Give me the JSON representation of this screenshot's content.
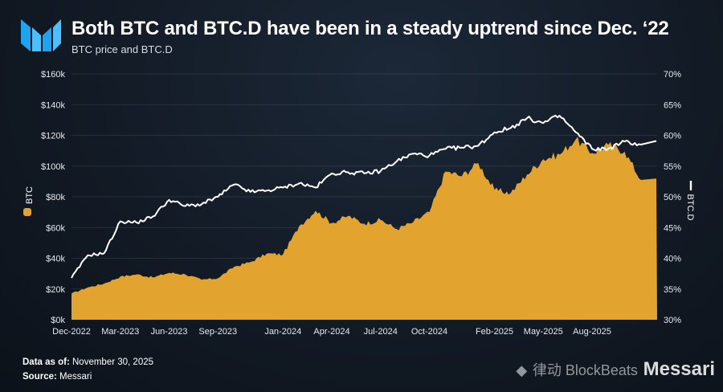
{
  "header": {
    "title": "Both BTC and BTC.D have been in a steady uptrend since Dec. ‘22",
    "subtitle": "BTC price and BTC.D"
  },
  "footer": {
    "data_as_of_label": "Data as of:",
    "data_as_of_value": "November 30, 2025",
    "source_label": "Source:",
    "source_value": "Messari"
  },
  "watermark": "律动 BlockBeats",
  "watermark_brand": "Messari",
  "chart_data": {
    "type": "area",
    "title": "Both BTC and BTC.D have been in a steady uptrend since Dec. ‘22",
    "subtitle": "BTC price and BTC.D",
    "x_tick_labels": [
      "Dec-2022",
      "Mar-2023",
      "Jun-2023",
      "Sep-2023",
      "Jan-2024",
      "Apr-2024",
      "Jul-2024",
      "Oct-2024",
      "Feb-2025",
      "May-2025",
      "Aug-2025"
    ],
    "left_axis": {
      "label": "BTC",
      "range": [
        0,
        160000
      ],
      "tick_labels": [
        "$0k",
        "$20k",
        "$40k",
        "$60k",
        "$80k",
        "$100k",
        "$120k",
        "$140k",
        "$160k"
      ]
    },
    "right_axis": {
      "label": "BTC.D",
      "range": [
        30,
        70
      ],
      "tick_labels": [
        "30%",
        "35%",
        "40%",
        "45%",
        "50%",
        "55%",
        "60%",
        "65%",
        "70%"
      ]
    },
    "series": [
      {
        "name": "BTC",
        "kind": "area",
        "axis": "left",
        "color": "#e2a32f",
        "points": [
          [
            "2022-12",
            17000
          ],
          [
            "2023-01",
            21000
          ],
          [
            "2023-02",
            23500
          ],
          [
            "2023-03",
            28000
          ],
          [
            "2023-04",
            29500
          ],
          [
            "2023-05",
            27500
          ],
          [
            "2023-06",
            30500
          ],
          [
            "2023-07",
            29500
          ],
          [
            "2023-08",
            26000
          ],
          [
            "2023-09",
            27000
          ],
          [
            "2023-10",
            34500
          ],
          [
            "2023-11",
            37500
          ],
          [
            "2023-12",
            43000
          ],
          [
            "2024-01",
            42500
          ],
          [
            "2024-02",
            61000
          ],
          [
            "2024-03",
            71000
          ],
          [
            "2024-04",
            63000
          ],
          [
            "2024-05",
            67500
          ],
          [
            "2024-06",
            62500
          ],
          [
            "2024-07",
            65000
          ],
          [
            "2024-08",
            59000
          ],
          [
            "2024-09",
            63500
          ],
          [
            "2024-10",
            70000
          ],
          [
            "2024-11",
            96500
          ],
          [
            "2024-12",
            93500
          ],
          [
            "2025-01",
            102000
          ],
          [
            "2025-02",
            84500
          ],
          [
            "2025-03",
            82500
          ],
          [
            "2025-04",
            94500
          ],
          [
            "2025-05",
            104500
          ],
          [
            "2025-06",
            107500
          ],
          [
            "2025-07",
            117500
          ],
          [
            "2025-08",
            108500
          ],
          [
            "2025-09",
            114000
          ],
          [
            "2025-10",
            109500
          ],
          [
            "2025-11",
            91000
          ]
        ]
      },
      {
        "name": "BTC.D",
        "kind": "line",
        "axis": "right",
        "color": "#ffffff",
        "points": [
          [
            "2022-12",
            36.8
          ],
          [
            "2023-01",
            40.5
          ],
          [
            "2023-02",
            40.8
          ],
          [
            "2023-03",
            46.0
          ],
          [
            "2023-04",
            45.8
          ],
          [
            "2023-05",
            46.8
          ],
          [
            "2023-06",
            49.5
          ],
          [
            "2023-07",
            48.5
          ],
          [
            "2023-08",
            48.8
          ],
          [
            "2023-09",
            50.0
          ],
          [
            "2023-10",
            52.0
          ],
          [
            "2023-11",
            50.8
          ],
          [
            "2023-12",
            51.0
          ],
          [
            "2024-01",
            51.5
          ],
          [
            "2024-02",
            52.2
          ],
          [
            "2024-03",
            51.5
          ],
          [
            "2024-04",
            53.8
          ],
          [
            "2024-05",
            54.0
          ],
          [
            "2024-06",
            53.8
          ],
          [
            "2024-07",
            54.2
          ],
          [
            "2024-08",
            55.8
          ],
          [
            "2024-09",
            57.0
          ],
          [
            "2024-10",
            56.7
          ],
          [
            "2024-11",
            57.8
          ],
          [
            "2024-12",
            58.0
          ],
          [
            "2025-01",
            58.3
          ],
          [
            "2025-02",
            60.5
          ],
          [
            "2025-03",
            61.2
          ],
          [
            "2025-04",
            62.8
          ],
          [
            "2025-05",
            62.0
          ],
          [
            "2025-06",
            63.2
          ],
          [
            "2025-07",
            60.5
          ],
          [
            "2025-08",
            57.8
          ],
          [
            "2025-09",
            57.8
          ],
          [
            "2025-10",
            59.0
          ],
          [
            "2025-11",
            58.5
          ]
        ]
      }
    ]
  }
}
